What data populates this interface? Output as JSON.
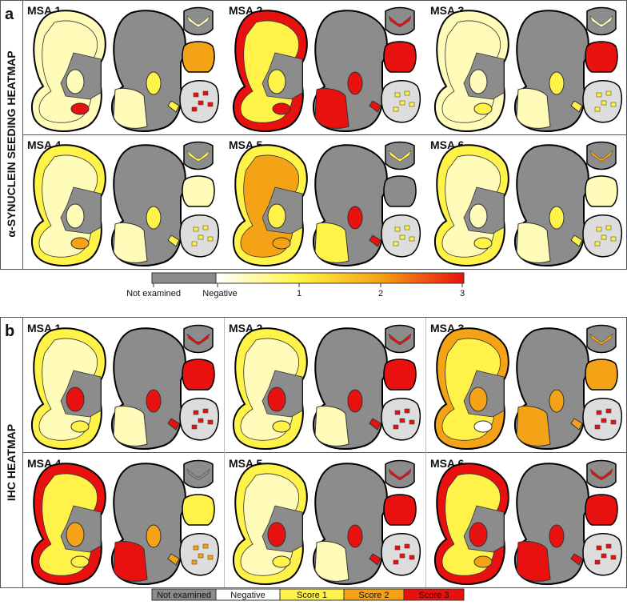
{
  "panel_a": {
    "letter": "a",
    "title": "α-SYNUCLEIN SEEDING HEATMAP",
    "cases": [
      "MSA 1",
      "MSA 2",
      "MSA 3",
      "MSA 4",
      "MSA 5",
      "MSA 6"
    ],
    "colorbar": {
      "not_examined": "Not examined",
      "negative": "Negative",
      "lim": [
        0,
        3
      ],
      "ticks": [
        1,
        2,
        3
      ]
    }
  },
  "panel_b": {
    "letter": "b",
    "title": "IHC HEATMAP",
    "cases": [
      "MSA 1",
      "MSA 2",
      "MSA 3",
      "MSA 4",
      "MSA 5",
      "MSA 6"
    ],
    "legend": [
      "Not examined",
      "Negative",
      "Score 1",
      "Score 2",
      "Score 3"
    ]
  }
}
